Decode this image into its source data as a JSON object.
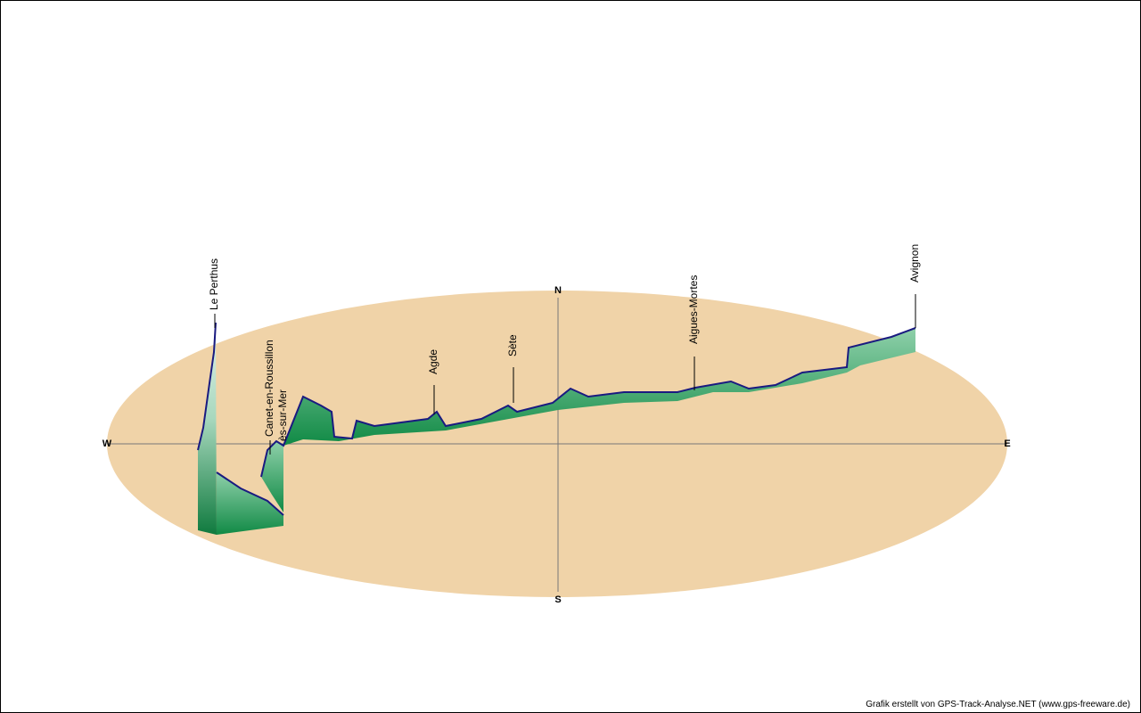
{
  "compass": {
    "north": "N",
    "south": "S",
    "west": "W",
    "east": "E"
  },
  "places": [
    "Le Perthus",
    "Canet-en-Roussillon",
    "ès-sur-Mer",
    "Agde",
    "Sète",
    "Aigues-Mortes",
    "Avignon"
  ],
  "credit": "Grafik erstellt von GPS-Track-Analyse.NET (www.gps-freeware.de)"
}
